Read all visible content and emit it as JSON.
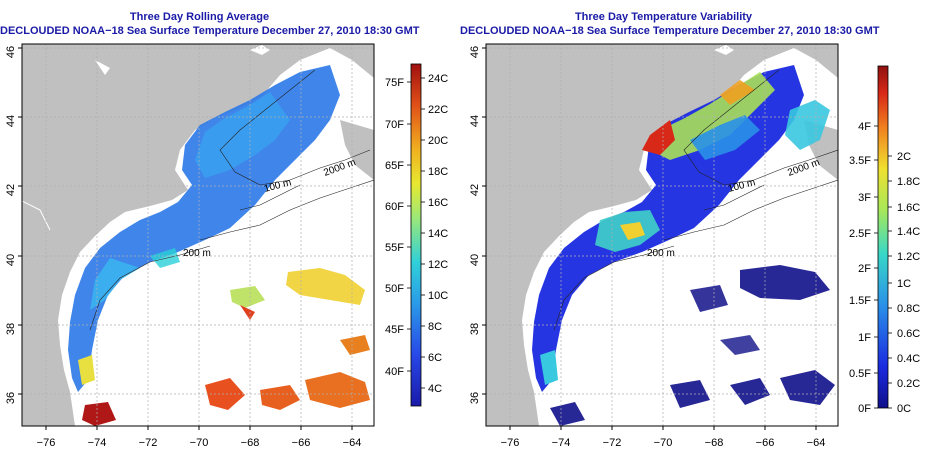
{
  "left_panel": {
    "title_line1": "Three Day Rolling Average",
    "title_line2": "DECLOUDED NOAA−18 Sea Surface Temperature December 27, 2010 18:30 GMT",
    "colorbar_f": [
      "75F",
      "70F",
      "65F",
      "60F",
      "55F",
      "50F",
      "45F",
      "40F"
    ],
    "colorbar_c": [
      "24C",
      "22C",
      "20C",
      "18C",
      "16C",
      "14C",
      "12C",
      "10C",
      "8C",
      "6C",
      "4C"
    ]
  },
  "right_panel": {
    "title_line1": "Three Day Temperature Variability",
    "title_line2": "DECLOUDED NOAA−18 Sea Surface Temperature December 27, 2010 18:30 GMT",
    "colorbar_f": [
      "4F",
      "3.5F",
      "3F",
      "2.5F",
      "2F",
      "1.5F",
      "1F",
      "0.5F",
      "0F"
    ],
    "colorbar_c": [
      "2C",
      "1.8C",
      "1.6C",
      "1.4C",
      "1.2C",
      "1C",
      "0.8C",
      "0.6C",
      "0.4C",
      "0.2C",
      "0C"
    ]
  },
  "lon_ticks": [
    "−76",
    "−74",
    "−72",
    "−70",
    "−68",
    "−66",
    "−64"
  ],
  "lat_ticks": [
    "46",
    "44",
    "42",
    "40",
    "38",
    "36"
  ],
  "contour_labels": {
    "c2000": "2000 m",
    "c200": "200 m",
    "c100": "100 m"
  },
  "colors": {
    "land": "#c0c0c0",
    "title": "#1a1aa6",
    "grid": "#b0b0b0"
  }
}
